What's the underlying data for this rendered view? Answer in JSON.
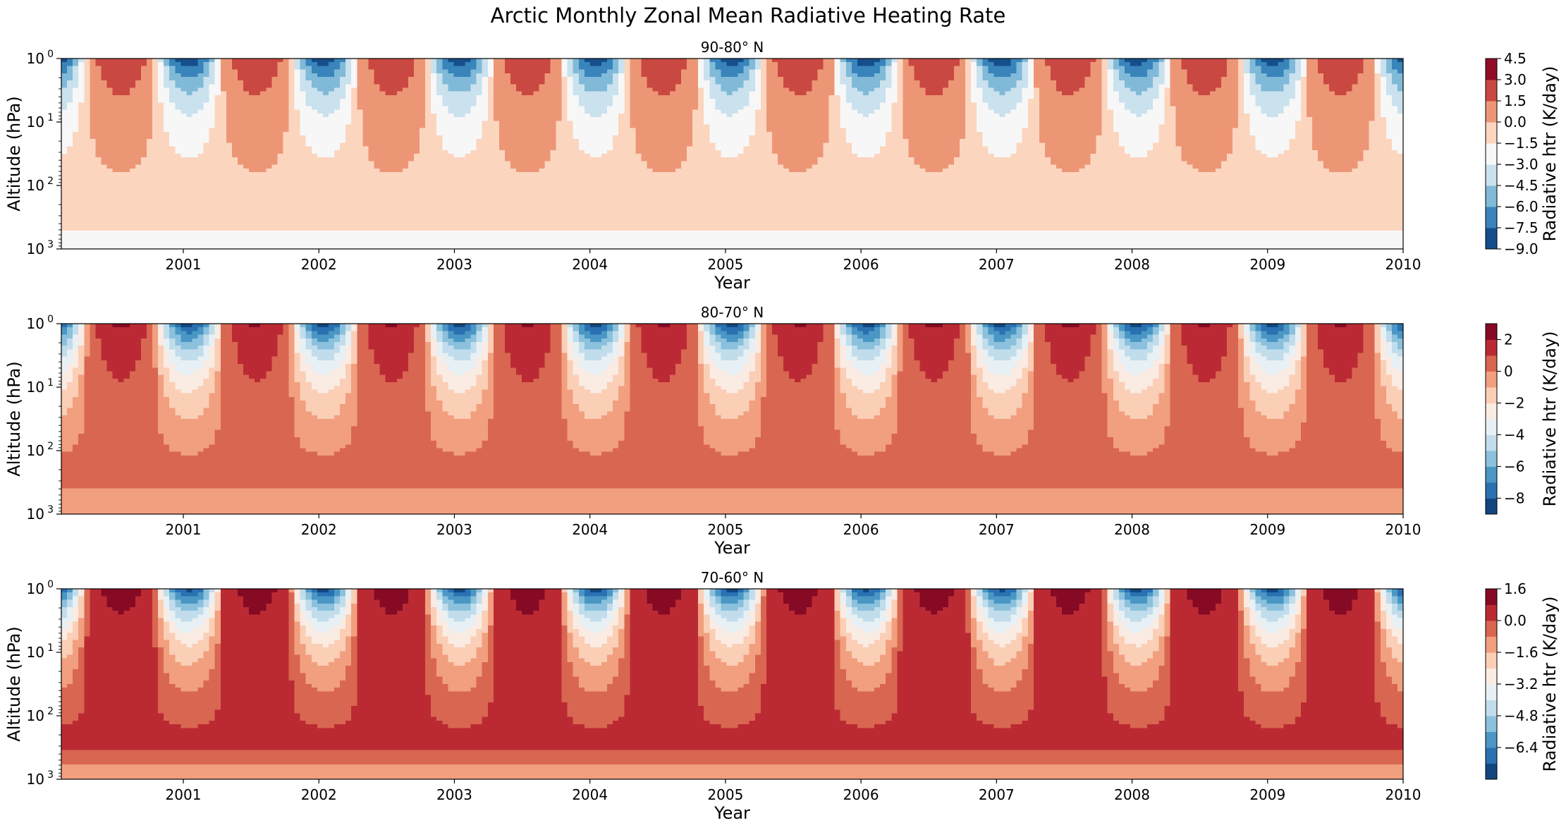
{
  "figure_title": "Arctic Monthly Zonal Mean Radiative Heating Rate",
  "chart_data": [
    {
      "type": "heatmap",
      "title": "90-80° N",
      "xlabel": "Year",
      "ylabel": "Altitude (hPa)",
      "xlim": [
        2000.1,
        2010.0
      ],
      "x_ticks": [
        "2001",
        "2002",
        "2003",
        "2004",
        "2005",
        "2006",
        "2007",
        "2008",
        "2009",
        "2010"
      ],
      "y_scale": "log",
      "ylim": [
        1000,
        1
      ],
      "y_ticks": [
        {
          "base": "10",
          "exp": "0"
        },
        {
          "base": "10",
          "exp": "1"
        },
        {
          "base": "10",
          "exp": "2"
        },
        {
          "base": "10",
          "exp": "3"
        }
      ],
      "colorbar": {
        "label": "Radiative htr (K/day)",
        "levels": [
          -9.0,
          -7.5,
          -6.0,
          -4.5,
          -3.0,
          -1.5,
          0.0,
          1.5,
          3.0,
          4.5
        ],
        "tick_labels": [
          "4.5",
          "3.0",
          "1.5",
          "0.0",
          "−1.5",
          "−3.0",
          "−4.5",
          "−6.0",
          "−7.5",
          "−9.0"
        ],
        "tick_values": [
          4.5,
          3.0,
          1.5,
          0.0,
          -1.5,
          -3.0,
          -4.5,
          -6.0,
          -7.5,
          -9.0
        ]
      },
      "pattern": {
        "summer_max": 3.6,
        "winter_min": -8.6,
        "deep_value": -0.4,
        "surface_value": -1.8
      }
    },
    {
      "type": "heatmap",
      "title": "80-70° N",
      "xlabel": "Year",
      "ylabel": "Altitude (hPa)",
      "xlim": [
        2000.1,
        2010.0
      ],
      "x_ticks": [
        "2001",
        "2002",
        "2003",
        "2004",
        "2005",
        "2006",
        "2007",
        "2008",
        "2009",
        "2010"
      ],
      "y_scale": "log",
      "ylim": [
        1000,
        1
      ],
      "y_ticks": [
        {
          "base": "10",
          "exp": "0"
        },
        {
          "base": "10",
          "exp": "1"
        },
        {
          "base": "10",
          "exp": "2"
        },
        {
          "base": "10",
          "exp": "3"
        }
      ],
      "colorbar": {
        "label": "Radiative htr (K/day)",
        "levels": [
          -9,
          -8,
          -7,
          -6,
          -5,
          -4,
          -3,
          -2,
          -1,
          0,
          1,
          2,
          3
        ],
        "tick_labels": [
          "2",
          "0",
          "−2",
          "−4",
          "−6",
          "−8"
        ],
        "tick_values": [
          2,
          0,
          -2,
          -4,
          -6,
          -8
        ]
      },
      "pattern": {
        "summer_max": 2.6,
        "winter_min": -8.5,
        "deep_value": 0.4,
        "surface_value": -0.6
      }
    },
    {
      "type": "heatmap",
      "title": "70-60° N",
      "xlabel": "Year",
      "ylabel": "Altitude (hPa)",
      "xlim": [
        2000.1,
        2010.0
      ],
      "x_ticks": [
        "2001",
        "2002",
        "2003",
        "2004",
        "2005",
        "2006",
        "2007",
        "2008",
        "2009",
        "2010"
      ],
      "y_scale": "log",
      "ylim": [
        1000,
        1
      ],
      "y_ticks": [
        {
          "base": "10",
          "exp": "0"
        },
        {
          "base": "10",
          "exp": "1"
        },
        {
          "base": "10",
          "exp": "2"
        },
        {
          "base": "10",
          "exp": "3"
        }
      ],
      "colorbar": {
        "label": "Radiative htr (K/day)",
        "levels": [
          -8.0,
          -7.2,
          -6.4,
          -5.6,
          -4.8,
          -4.0,
          -3.2,
          -2.4,
          -1.6,
          -0.8,
          0.0,
          0.8,
          1.6
        ],
        "tick_labels": [
          "1.6",
          "0.0",
          "−1.6",
          "−3.2",
          "−4.8",
          "−6.4"
        ],
        "tick_values": [
          1.6,
          0.0,
          -1.6,
          -3.2,
          -4.8,
          -6.4
        ]
      },
      "pattern": {
        "summer_max": 1.4,
        "winter_min": -7.6,
        "deep_value": 0.2,
        "surface_value": -0.9
      }
    }
  ]
}
